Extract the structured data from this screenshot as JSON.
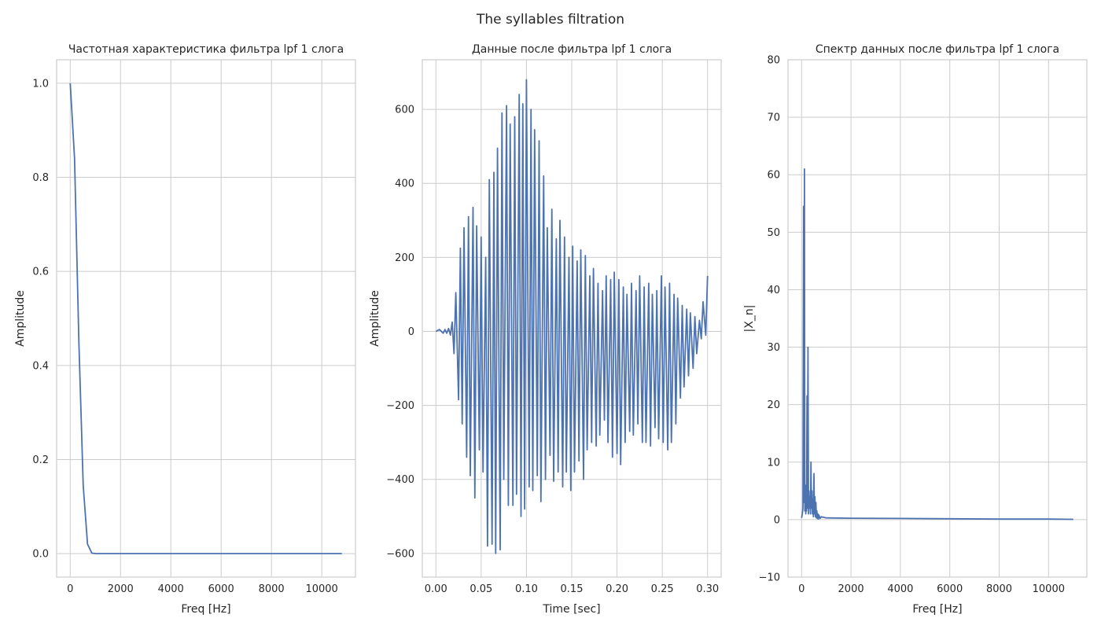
{
  "figure": {
    "suptitle": "The syllables filtration"
  },
  "chart_data": [
    {
      "type": "line",
      "title": "Частотная характеристика фильтра lpf 1 слога",
      "xlabel": "Freq [Hz]",
      "ylabel": "Amplitude",
      "xlim": [
        -540,
        11340
      ],
      "ylim": [
        -0.05,
        1.05
      ],
      "xticks": [
        0,
        2000,
        4000,
        6000,
        8000,
        10000
      ],
      "xtick_labels": [
        "0",
        "2000",
        "4000",
        "6000",
        "8000",
        "10000"
      ],
      "yticks": [
        0.0,
        0.2,
        0.4,
        0.6,
        0.8,
        1.0
      ],
      "ytick_labels": [
        "0.0",
        "0.2",
        "0.4",
        "0.6",
        "0.8",
        "1.0"
      ],
      "grid": true,
      "color": "#4c72b0",
      "series": [
        {
          "x": [
            0,
            172,
            344,
            516,
            688,
            860,
            1030,
            1200,
            2000,
            4000,
            6000,
            8000,
            10000,
            10800
          ],
          "y": [
            1.0,
            0.84,
            0.45,
            0.145,
            0.02,
            0.001,
            0.0,
            0.0,
            0.0,
            0.0,
            0.0,
            0.0,
            0.0,
            0.0
          ]
        }
      ]
    },
    {
      "type": "line",
      "title": "Данные после фильтра lpf 1 слога",
      "xlabel": "Time [sec]",
      "ylabel": "Amplitude",
      "xlim": [
        -0.015,
        0.315
      ],
      "ylim": [
        -664,
        734
      ],
      "xticks": [
        0.0,
        0.05,
        0.1,
        0.15,
        0.2,
        0.25,
        0.3
      ],
      "xtick_labels": [
        "0.00",
        "0.05",
        "0.10",
        "0.15",
        "0.20",
        "0.25",
        "0.30"
      ],
      "yticks": [
        -600,
        -400,
        -200,
        0,
        200,
        400,
        600
      ],
      "ytick_labels": [
        "−600",
        "−400",
        "−200",
        "0",
        "200",
        "400",
        "600"
      ],
      "grid": true,
      "color": "#4c72b0",
      "series": [
        {
          "x": [
            0.0,
            0.004,
            0.008,
            0.01,
            0.012,
            0.014,
            0.016,
            0.018,
            0.02,
            0.022,
            0.025,
            0.027,
            0.029,
            0.031,
            0.034,
            0.036,
            0.038,
            0.041,
            0.043,
            0.045,
            0.048,
            0.05,
            0.052,
            0.055,
            0.057,
            0.059,
            0.062,
            0.064,
            0.066,
            0.068,
            0.071,
            0.073,
            0.075,
            0.078,
            0.08,
            0.082,
            0.085,
            0.087,
            0.089,
            0.092,
            0.094,
            0.096,
            0.098,
            0.1,
            0.103,
            0.105,
            0.107,
            0.109,
            0.112,
            0.114,
            0.116,
            0.119,
            0.121,
            0.123,
            0.126,
            0.128,
            0.13,
            0.133,
            0.135,
            0.137,
            0.14,
            0.142,
            0.144,
            0.147,
            0.149,
            0.151,
            0.153,
            0.156,
            0.158,
            0.16,
            0.163,
            0.165,
            0.167,
            0.17,
            0.172,
            0.174,
            0.177,
            0.179,
            0.181,
            0.184,
            0.186,
            0.188,
            0.19,
            0.193,
            0.195,
            0.197,
            0.2,
            0.202,
            0.204,
            0.207,
            0.209,
            0.211,
            0.214,
            0.216,
            0.218,
            0.221,
            0.223,
            0.225,
            0.228,
            0.23,
            0.232,
            0.235,
            0.237,
            0.239,
            0.242,
            0.244,
            0.246,
            0.249,
            0.251,
            0.253,
            0.256,
            0.258,
            0.26,
            0.263,
            0.265,
            0.267,
            0.27,
            0.272,
            0.274,
            0.277,
            0.279,
            0.281,
            0.284,
            0.286,
            0.288,
            0.291,
            0.293,
            0.295,
            0.298,
            0.3
          ],
          "y": [
            0,
            5,
            -5,
            5,
            -5,
            8,
            -10,
            25,
            -60,
            105,
            -185,
            225,
            -250,
            280,
            -340,
            310,
            -390,
            335,
            -450,
            285,
            -320,
            255,
            -380,
            200,
            -580,
            410,
            -575,
            430,
            -600,
            495,
            -590,
            590,
            -400,
            610,
            -470,
            560,
            -470,
            580,
            -440,
            640,
            -500,
            615,
            -480,
            680,
            -420,
            600,
            -430,
            545,
            -390,
            515,
            -460,
            420,
            -400,
            280,
            -335,
            330,
            -405,
            250,
            -380,
            300,
            -420,
            255,
            -380,
            200,
            -430,
            230,
            -380,
            190,
            -350,
            220,
            -400,
            205,
            -320,
            150,
            -300,
            170,
            -310,
            130,
            -280,
            110,
            -240,
            150,
            -300,
            140,
            -340,
            160,
            -330,
            140,
            -360,
            120,
            -300,
            100,
            -270,
            130,
            -280,
            110,
            -250,
            150,
            -300,
            120,
            -300,
            130,
            -310,
            100,
            -260,
            110,
            -290,
            150,
            -300,
            120,
            -320,
            130,
            -300,
            100,
            -250,
            90,
            -180,
            70,
            -150,
            60,
            -120,
            50,
            -100,
            40,
            -60,
            30,
            -20,
            80,
            -10,
            150
          ]
        }
      ]
    },
    {
      "type": "line",
      "title": "Спектр данных после фильтра lpf 1 слога",
      "xlabel": "Freq [Hz]",
      "ylabel": "|X_n|",
      "xlim": [
        -550,
        11550
      ],
      "ylim": [
        -10,
        80
      ],
      "xticks": [
        0,
        2000,
        4000,
        6000,
        8000,
        10000
      ],
      "xtick_labels": [
        "0",
        "2000",
        "4000",
        "6000",
        "8000",
        "10000"
      ],
      "yticks": [
        -10,
        0,
        10,
        20,
        30,
        40,
        50,
        60,
        70,
        80
      ],
      "ytick_labels": [
        "−10",
        "0",
        "10",
        "20",
        "30",
        "40",
        "50",
        "60",
        "70",
        "80"
      ],
      "grid": true,
      "color": "#4c72b0",
      "series": [
        {
          "x": [
            0,
            30,
            55,
            80,
            100,
            115,
            130,
            150,
            170,
            185,
            200,
            220,
            240,
            260,
            280,
            300,
            320,
            340,
            360,
            380,
            400,
            420,
            440,
            460,
            480,
            500,
            520,
            540,
            560,
            580,
            600,
            620,
            640,
            660,
            680,
            700,
            750,
            800,
            1000,
            2000,
            4000,
            6000,
            8000,
            10000,
            11000
          ],
          "y": [
            0.3,
            1.0,
            2.0,
            54.5,
            3.0,
            61.0,
            1.5,
            6.0,
            1.0,
            4.0,
            1.5,
            21.5,
            2.0,
            30.0,
            1.0,
            5.0,
            2.0,
            4.0,
            1.0,
            10.0,
            2.0,
            5.0,
            1.0,
            3.5,
            0.5,
            8.0,
            1.0,
            4.0,
            0.5,
            3.0,
            0.3,
            1.5,
            0.2,
            1.0,
            0.1,
            0.8,
            0.2,
            0.5,
            0.3,
            0.25,
            0.2,
            0.15,
            0.1,
            0.1,
            0.05
          ]
        }
      ]
    }
  ]
}
